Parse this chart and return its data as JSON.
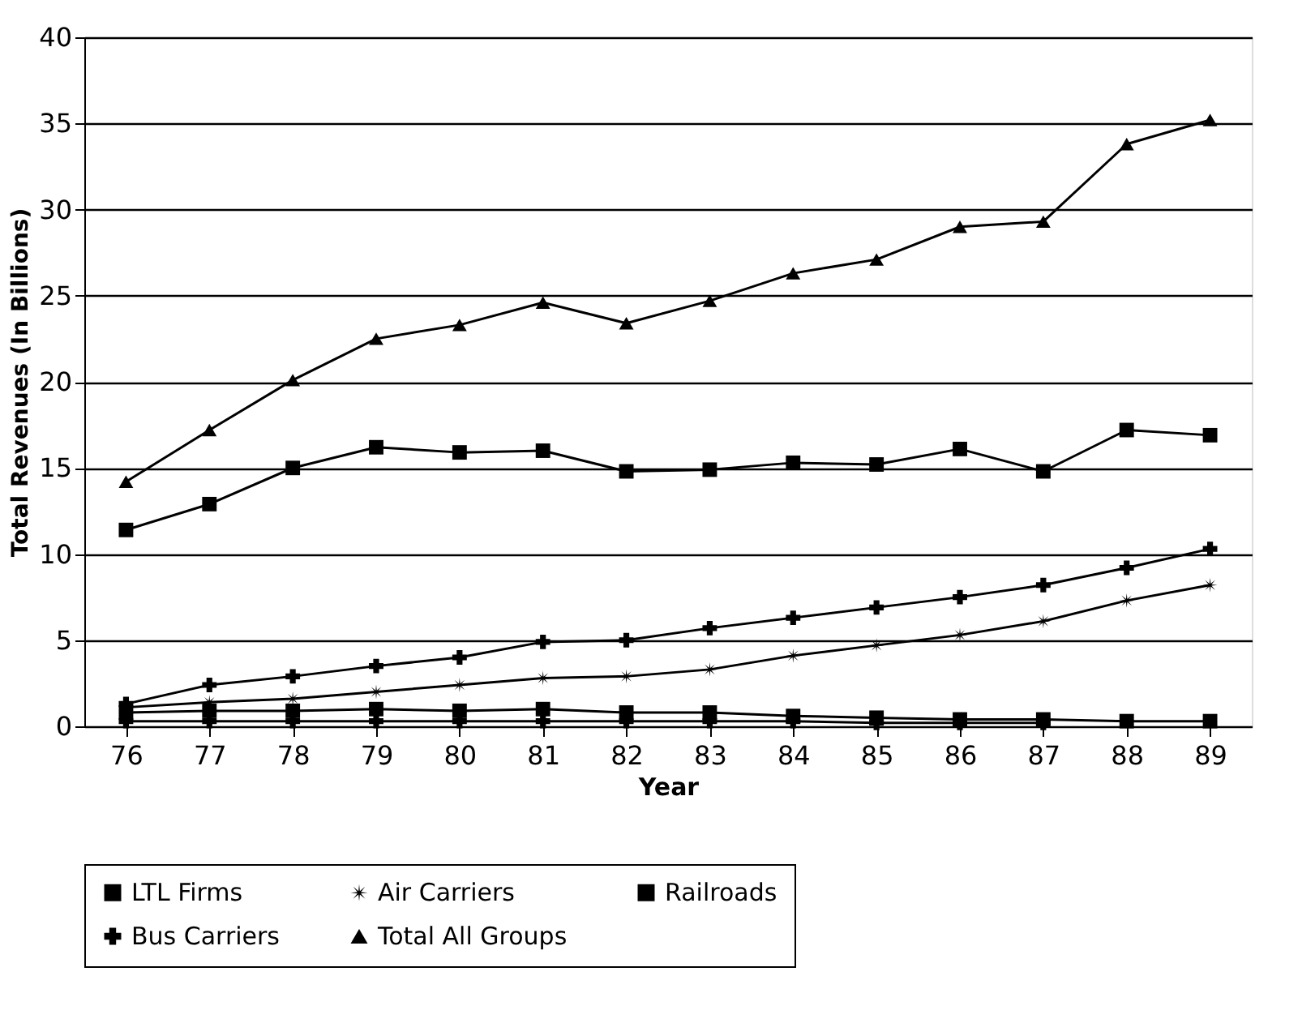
{
  "chart_data": {
    "type": "line",
    "xlabel": "Year",
    "ylabel": "Total Revenues (In Billions)",
    "categories": [
      "76",
      "77",
      "78",
      "79",
      "80",
      "81",
      "82",
      "83",
      "84",
      "85",
      "86",
      "87",
      "88",
      "89"
    ],
    "ylim": [
      0,
      40
    ],
    "yticks": [
      0,
      5,
      10,
      15,
      20,
      25,
      30,
      35,
      40
    ],
    "grid": "y",
    "legend": "bottom",
    "line_style": "solid",
    "series": [
      {
        "name": "LTL Firms",
        "color": "#000000",
        "marker": "square",
        "values": [
          11.4,
          12.9,
          15.0,
          16.2,
          15.9,
          16.0,
          14.8,
          14.9,
          15.3,
          15.2,
          16.1,
          14.8,
          17.2,
          16.9
        ]
      },
      {
        "color": "#000000",
        "marker": "cross",
        "values": [
          1.3,
          2.4,
          2.9,
          3.5,
          4.0,
          4.9,
          5.0,
          5.7,
          6.3,
          6.9,
          7.5,
          8.2,
          9.2,
          10.3
        ]
      },
      {
        "name": "Air Carriers",
        "color": "#000000",
        "marker": "star",
        "values": [
          1.1,
          1.4,
          1.6,
          2.0,
          2.4,
          2.8,
          2.9,
          3.3,
          4.1,
          4.7,
          5.3,
          6.1,
          7.3,
          8.2
        ]
      },
      {
        "name": "Railroads",
        "color": "#000000",
        "marker": "square",
        "values": [
          0.8,
          0.9,
          0.9,
          1.0,
          0.9,
          1.0,
          0.8,
          0.8,
          0.6,
          0.5,
          0.4,
          0.4,
          0.3,
          0.3
        ]
      },
      {
        "name": "Bus Carriers",
        "color": "#000000",
        "marker": "cross",
        "values": [
          0.3,
          0.3,
          0.3,
          0.3,
          0.3,
          0.3,
          0.3,
          0.3,
          0.3,
          0.2,
          0.2,
          0.2,
          null,
          null
        ]
      },
      {
        "name": "Total All Groups",
        "color": "#000000",
        "marker": "triangle",
        "values": [
          14.2,
          17.2,
          20.1,
          22.5,
          23.3,
          24.6,
          23.4,
          24.7,
          26.3,
          27.1,
          29.0,
          29.3,
          33.8,
          35.2
        ]
      }
    ]
  }
}
